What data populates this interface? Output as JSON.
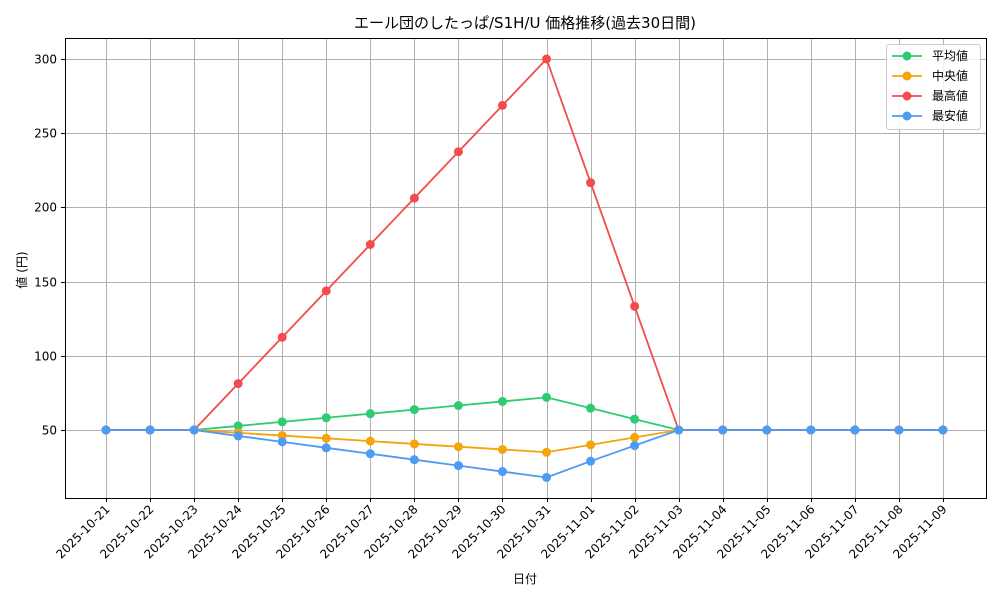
{
  "chart_data": {
    "type": "line",
    "title": "エール団のしたっぱ/S1H/U 価格推移(過去30日間)",
    "xlabel": "日付",
    "ylabel": "値 (円)",
    "ylim": [
      12,
      312
    ],
    "yticks": [
      50,
      100,
      150,
      200,
      250,
      300
    ],
    "grid": true,
    "legend_position": "upper right",
    "categories": [
      "2025-10-21",
      "2025-10-22",
      "2025-10-23",
      "2025-10-24",
      "2025-10-25",
      "2025-10-26",
      "2025-10-27",
      "2025-10-28",
      "2025-10-29",
      "2025-10-30",
      "2025-10-31",
      "2025-11-01",
      "2025-11-02",
      "2025-11-03",
      "2025-11-04",
      "2025-11-05",
      "2025-11-06",
      "2025-11-07",
      "2025-11-08",
      "2025-11-09"
    ],
    "series": [
      {
        "name": "平均値",
        "color": "#2ecc71",
        "values": [
          50,
          50,
          50,
          52.75,
          55.5,
          58.25,
          61,
          63.75,
          66.5,
          69.25,
          72,
          64.7,
          57.3,
          50,
          50,
          50,
          50,
          50,
          50,
          50
        ]
      },
      {
        "name": "中央値",
        "color": "#f5a40a",
        "values": [
          50,
          50,
          50,
          48.1,
          46.25,
          44.4,
          42.5,
          40.6,
          38.75,
          36.9,
          35,
          40,
          45,
          50,
          50,
          50,
          50,
          50,
          50,
          50
        ]
      },
      {
        "name": "最高値",
        "color": "#f44c4c",
        "values": [
          50,
          50,
          50,
          81.25,
          112.5,
          143.75,
          175,
          206.25,
          237.5,
          268.75,
          300,
          216.67,
          133.33,
          50,
          50,
          50,
          50,
          50,
          50,
          50
        ]
      },
      {
        "name": "最安値",
        "color": "#4c9bf5",
        "values": [
          50,
          50,
          50,
          46,
          42,
          38,
          34,
          30,
          26,
          22,
          18,
          29,
          39.5,
          50,
          50,
          50,
          50,
          50,
          50,
          50
        ]
      }
    ]
  }
}
